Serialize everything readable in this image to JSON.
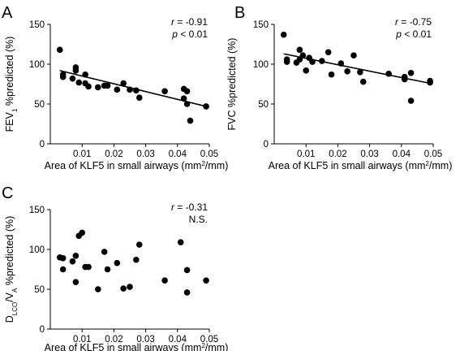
{
  "chart_data": [
    {
      "type": "scatter",
      "panel_letter": "A",
      "title": "",
      "xlabel": {
        "pre": "Area of KLF5 in small airways (mm",
        "sup": "2",
        "post": "/mm)"
      },
      "ylabel": {
        "pre": "FEV",
        "sub": "1",
        "post": " %predicted (%)"
      },
      "xlim": [
        0,
        0.05
      ],
      "ylim": [
        0,
        150
      ],
      "xticks": [
        0.01,
        0.02,
        0.03,
        0.04,
        0.05
      ],
      "xtick_labels": [
        "0.01",
        "0.02",
        "0.03",
        "0.04",
        "0.05"
      ],
      "yticks": [
        0,
        50,
        100,
        150
      ],
      "ytick_labels": [
        "0",
        "50",
        "100",
        "150"
      ],
      "stat_r": "-0.91",
      "stat_second_prefix": "p",
      "stat_second_value": " < 0.01",
      "regression": {
        "x": [
          0.003,
          0.049
        ],
        "y": [
          92,
          47
        ]
      },
      "points": {
        "x": [
          0.003,
          0.004,
          0.004,
          0.007,
          0.008,
          0.008,
          0.009,
          0.011,
          0.011,
          0.012,
          0.015,
          0.017,
          0.018,
          0.021,
          0.023,
          0.025,
          0.027,
          0.028,
          0.036,
          0.042,
          0.042,
          0.043,
          0.043,
          0.044,
          0.049
        ],
        "y": [
          118,
          87,
          84,
          82,
          96,
          92,
          77,
          87,
          76,
          72,
          71,
          73,
          73,
          68,
          76,
          68,
          67,
          58,
          66,
          69,
          57,
          66,
          50,
          29,
          47
        ]
      }
    },
    {
      "type": "scatter",
      "panel_letter": "B",
      "title": "",
      "xlabel": {
        "pre": "Area of KLF5 in small airways (mm",
        "sup": "2",
        "post": "/mm)"
      },
      "ylabel": {
        "pre": "FVC",
        "sub": "",
        "post": " %predicted (%)"
      },
      "xlim": [
        0,
        0.05
      ],
      "ylim": [
        0,
        150
      ],
      "xticks": [
        0.01,
        0.02,
        0.03,
        0.04,
        0.05
      ],
      "xtick_labels": [
        "0.01",
        "0.02",
        "0.03",
        "0.04",
        "0.05"
      ],
      "yticks": [
        0,
        50,
        100,
        150
      ],
      "ytick_labels": [
        "0",
        "50",
        "100",
        "150"
      ],
      "stat_r": "-0.75",
      "stat_second_prefix": "p",
      "stat_second_value": " < 0.01",
      "regression": {
        "x": [
          0.003,
          0.049
        ],
        "y": [
          113,
          76
        ]
      },
      "points": {
        "x": [
          0.003,
          0.004,
          0.004,
          0.007,
          0.008,
          0.008,
          0.009,
          0.01,
          0.011,
          0.012,
          0.015,
          0.017,
          0.018,
          0.021,
          0.023,
          0.025,
          0.027,
          0.028,
          0.036,
          0.041,
          0.041,
          0.043,
          0.043,
          0.049,
          0.049
        ],
        "y": [
          137,
          103,
          106,
          102,
          118,
          106,
          111,
          92,
          108,
          103,
          104,
          115,
          87,
          101,
          91,
          111,
          90,
          78,
          88,
          84,
          81,
          89,
          54,
          79,
          77
        ]
      }
    },
    {
      "type": "scatter",
      "panel_letter": "C",
      "title": "",
      "xlabel": {
        "pre": "Area of KLF5 in small airways (mm",
        "sup": "2",
        "post": "/mm)"
      },
      "ylabel": {
        "pre": "D",
        "sub": "LCO",
        "mid": "/V",
        "sub2": "A",
        "post": " %predicted (%)"
      },
      "xlim": [
        0,
        0.05
      ],
      "ylim": [
        0,
        150
      ],
      "xticks": [
        0.01,
        0.02,
        0.03,
        0.04,
        0.05
      ],
      "xtick_labels": [
        "0.01",
        "0.02",
        "0.03",
        "0.04",
        "0.05"
      ],
      "yticks": [
        0,
        50,
        100,
        150
      ],
      "ytick_labels": [
        "0",
        "50",
        "100",
        "150"
      ],
      "stat_r": "-0.31",
      "stat_second_prefix": "",
      "stat_second_value": "N.S.",
      "regression": null,
      "points": {
        "x": [
          0.003,
          0.004,
          0.004,
          0.007,
          0.008,
          0.008,
          0.009,
          0.01,
          0.011,
          0.012,
          0.015,
          0.017,
          0.018,
          0.021,
          0.023,
          0.025,
          0.027,
          0.028,
          0.036,
          0.041,
          0.043,
          0.043,
          0.049
        ],
        "y": [
          90,
          75,
          89,
          85,
          59,
          92,
          117,
          121,
          78,
          78,
          50,
          97,
          75,
          83,
          51,
          53,
          87,
          106,
          61,
          109,
          74,
          46,
          61
        ]
      }
    }
  ]
}
